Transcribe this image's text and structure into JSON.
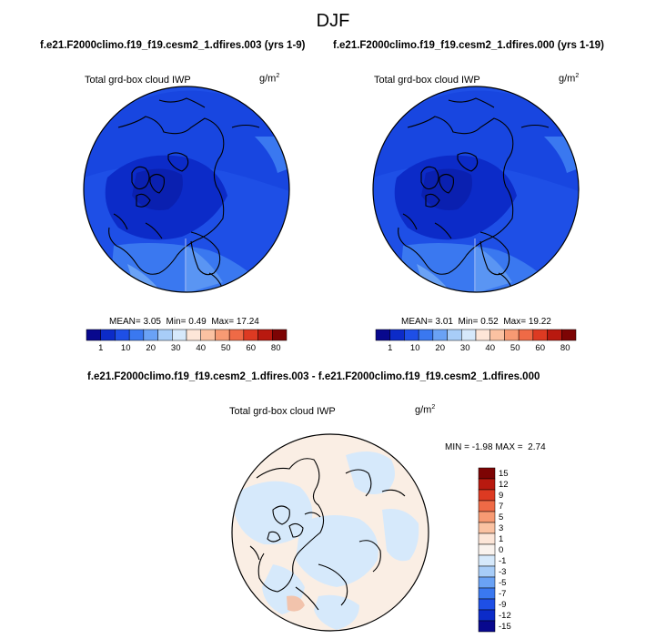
{
  "figure": {
    "title": "DJF",
    "top_left_case": "f.e21.F2000climo.f19_f19.cesm2_1.dfires.003 (yrs 1-9)",
    "top_right_case": "f.e21.F2000climo.f19_f19.cesm2_1.dfires.000 (yrs 1-19)",
    "diff_case": "f.e21.F2000climo.f19_f19.cesm2_1.dfires.003 - f.e21.F2000climo.f19_f19.cesm2_1.dfires.000"
  },
  "panels": {
    "left": {
      "variable": "Total grd-box cloud IWP",
      "units_base": "g/m",
      "units_exp": "2",
      "mean_label": "MEAN=",
      "mean": "3.05",
      "min_label": "Min=",
      "min": "0.49",
      "max_label": "Max=",
      "max": "17.24"
    },
    "right": {
      "variable": "Total grd-box cloud IWP",
      "units_base": "g/m",
      "units_exp": "2",
      "mean_label": "MEAN=",
      "mean": "3.01",
      "min_label": "Min=",
      "min": "0.52",
      "max_label": "Max=",
      "max": "19.22"
    },
    "diff": {
      "variable": "Total grd-box cloud IWP",
      "units_base": "g/m",
      "units_exp": "2",
      "min_label": "MIN =",
      "min": "-1.98",
      "max_label": "MAX =",
      "max": "2.74"
    }
  },
  "colorbars": {
    "abs_ticks": [
      "1",
      "10",
      "20",
      "30",
      "40",
      "50",
      "60",
      "80"
    ],
    "abs_colors": [
      "#08088e",
      "#0c2bc8",
      "#1e4fe6",
      "#3a78f0",
      "#6aa2f5",
      "#a8cdf8",
      "#d6e9fb",
      "#fde6d8",
      "#fbc2a2",
      "#f79a73",
      "#ef6a46",
      "#dd3a22",
      "#b8190f",
      "#7d0404"
    ],
    "diff_ticks": [
      "15",
      "12",
      "9",
      "7",
      "5",
      "3",
      "1",
      "0",
      "-1",
      "-3",
      "-5",
      "-7",
      "-9",
      "-12",
      "-15"
    ],
    "diff_colors": [
      "#7d0404",
      "#b8190f",
      "#dd3a22",
      "#ef6a46",
      "#f79a73",
      "#fbc2a2",
      "#fde6d8",
      "#faf3ee",
      "#d6e9fb",
      "#a8cdf8",
      "#6aa2f5",
      "#3a78f0",
      "#1e4fe6",
      "#0c2bc8",
      "#08088e"
    ]
  }
}
